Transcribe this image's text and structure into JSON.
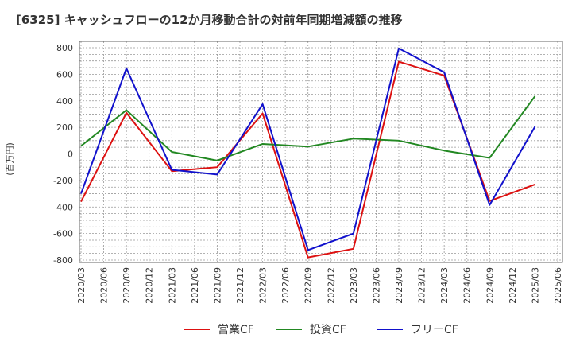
{
  "chart_data": {
    "type": "line",
    "title": "[6325]  キャッシュフローの12か月移動合計の対前年同期増減額の推移",
    "ylabel": "(百万円)",
    "xlabel": "",
    "ylim": [
      -800,
      800
    ],
    "yticks": [
      800,
      600,
      400,
      200,
      0,
      -200,
      -400,
      -600,
      -800
    ],
    "categories": [
      "2020/03",
      "2020/06",
      "2020/09",
      "2020/12",
      "2021/03",
      "2021/06",
      "2021/09",
      "2021/12",
      "2022/03",
      "2022/06",
      "2022/09",
      "2022/12",
      "2023/03",
      "2023/06",
      "2023/09",
      "2023/12",
      "2024/03",
      "2024/06",
      "2024/09",
      "2024/12",
      "2025/03",
      "2025/06"
    ],
    "series": [
      {
        "name": "営業CF",
        "color": "#dd1111",
        "values": [
          -360,
          null,
          310,
          null,
          -130,
          null,
          -100,
          null,
          305,
          null,
          -780,
          null,
          -715,
          null,
          695,
          null,
          590,
          null,
          -355,
          null,
          -230,
          null
        ]
      },
      {
        "name": "投資CF",
        "color": "#228822",
        "values": [
          60,
          null,
          330,
          null,
          15,
          null,
          -50,
          null,
          75,
          null,
          55,
          null,
          115,
          null,
          100,
          null,
          25,
          null,
          -30,
          null,
          435,
          null
        ]
      },
      {
        "name": "フリーCF",
        "color": "#1111cc",
        "values": [
          -300,
          null,
          645,
          null,
          -120,
          null,
          -155,
          null,
          375,
          null,
          -725,
          null,
          -600,
          null,
          795,
          null,
          615,
          null,
          -385,
          null,
          205,
          null
        ]
      }
    ],
    "grid": true,
    "legend_position": "bottom"
  }
}
